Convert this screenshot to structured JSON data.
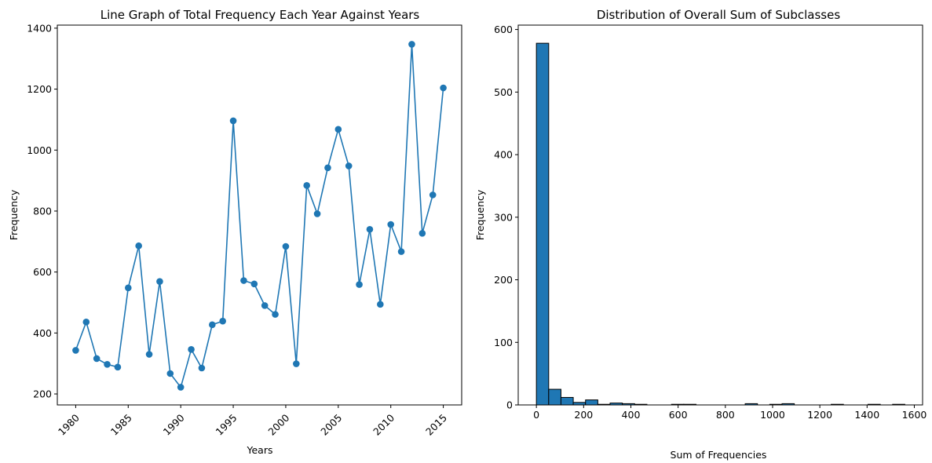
{
  "chart_data": [
    {
      "type": "line",
      "title": "Line Graph of Total Frequency Each Year Against Years",
      "xlabel": "Years",
      "ylabel": "Frequency",
      "xlim": [
        1978.25,
        2016.75
      ],
      "ylim": [
        164,
        1410
      ],
      "xticks": [
        1980,
        1985,
        1990,
        1995,
        2000,
        2005,
        2010,
        2015
      ],
      "yticks": [
        200,
        400,
        600,
        800,
        1000,
        1200,
        1400
      ],
      "xtick_rotation": 45,
      "markers": true,
      "color": "#1f77b4",
      "series": [
        {
          "x": [
            1980,
            1981,
            1982,
            1983,
            1984,
            1985,
            1986,
            1987,
            1988,
            1989,
            1990,
            1991,
            1992,
            1993,
            1994,
            1995,
            1996,
            1997,
            1998,
            1999,
            2000,
            2001,
            2002,
            2003,
            2004,
            2005,
            2006,
            2007,
            2008,
            2009,
            2010,
            2011,
            2012,
            2013,
            2014,
            2015
          ],
          "values": [
            343,
            436,
            316,
            297,
            288,
            548,
            686,
            330,
            569,
            267,
            222,
            346,
            285,
            427,
            439,
            1096,
            572,
            561,
            490,
            461,
            684,
            299,
            884,
            791,
            942,
            1068,
            948,
            559,
            740,
            494,
            756,
            667,
            1347,
            727,
            853,
            1204
          ]
        }
      ]
    },
    {
      "type": "bar",
      "subtype": "histogram",
      "title": "Distribution of Overall Sum of Subclasses",
      "xlabel": "Sum of Frequencies",
      "ylabel": "Frequency",
      "xlim": [
        -77,
        1635
      ],
      "ylim": [
        0,
        607
      ],
      "xticks": [
        0,
        200,
        400,
        600,
        800,
        1000,
        1200,
        1400,
        1600
      ],
      "yticks": [
        0,
        100,
        200,
        300,
        400,
        500,
        600
      ],
      "bin_start": 0,
      "bin_width": 52,
      "color": "#1f77b4",
      "edgecolor": "#000000",
      "values": [
        578,
        25,
        12,
        4,
        8,
        1,
        3,
        2,
        1,
        0,
        0,
        1,
        1,
        0,
        0,
        0,
        0,
        2,
        0,
        1,
        2,
        0,
        0,
        0,
        1,
        0,
        0,
        1,
        0,
        1
      ]
    }
  ]
}
